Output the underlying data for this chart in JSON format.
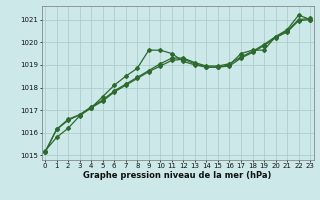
{
  "series1": [
    1015.2,
    1015.8,
    1016.2,
    1016.75,
    1017.1,
    1017.6,
    1018.1,
    1018.5,
    1018.85,
    1019.65,
    1019.65,
    1019.5,
    1019.15,
    1019.0,
    1018.9,
    1018.9,
    1019.0,
    1019.5,
    1019.65,
    1019.65,
    1020.25,
    1020.55,
    1021.2,
    1021.0
  ],
  "series2": [
    1015.15,
    1016.15,
    1016.6,
    1016.8,
    1017.15,
    1017.45,
    1017.85,
    1018.15,
    1018.45,
    1018.75,
    1019.05,
    1019.3,
    1019.3,
    1019.1,
    1018.95,
    1018.95,
    1019.05,
    1019.35,
    1019.6,
    1019.9,
    1020.25,
    1020.5,
    1021.0,
    1021.05
  ],
  "series3": [
    1015.15,
    1016.15,
    1016.55,
    1016.8,
    1017.1,
    1017.4,
    1017.8,
    1018.1,
    1018.4,
    1018.7,
    1018.95,
    1019.2,
    1019.25,
    1019.05,
    1018.9,
    1018.9,
    1018.95,
    1019.3,
    1019.55,
    1019.85,
    1020.2,
    1020.45,
    1020.95,
    1021.0
  ],
  "x": [
    0,
    1,
    2,
    3,
    4,
    5,
    6,
    7,
    8,
    9,
    10,
    11,
    12,
    13,
    14,
    15,
    16,
    17,
    18,
    19,
    20,
    21,
    22,
    23
  ],
  "line_color": "#2d6a2d",
  "bg_color": "#cce8e8",
  "xlabel": "Graphe pression niveau de la mer (hPa)",
  "ylim": [
    1014.8,
    1021.6
  ],
  "yticks": [
    1015,
    1016,
    1017,
    1018,
    1019,
    1020,
    1021
  ],
  "xticks": [
    0,
    1,
    2,
    3,
    4,
    5,
    6,
    7,
    8,
    9,
    10,
    11,
    12,
    13,
    14,
    15,
    16,
    17,
    18,
    19,
    20,
    21,
    22,
    23
  ],
  "title_fontsize": 5,
  "tick_fontsize": 5,
  "xlabel_fontsize": 6
}
